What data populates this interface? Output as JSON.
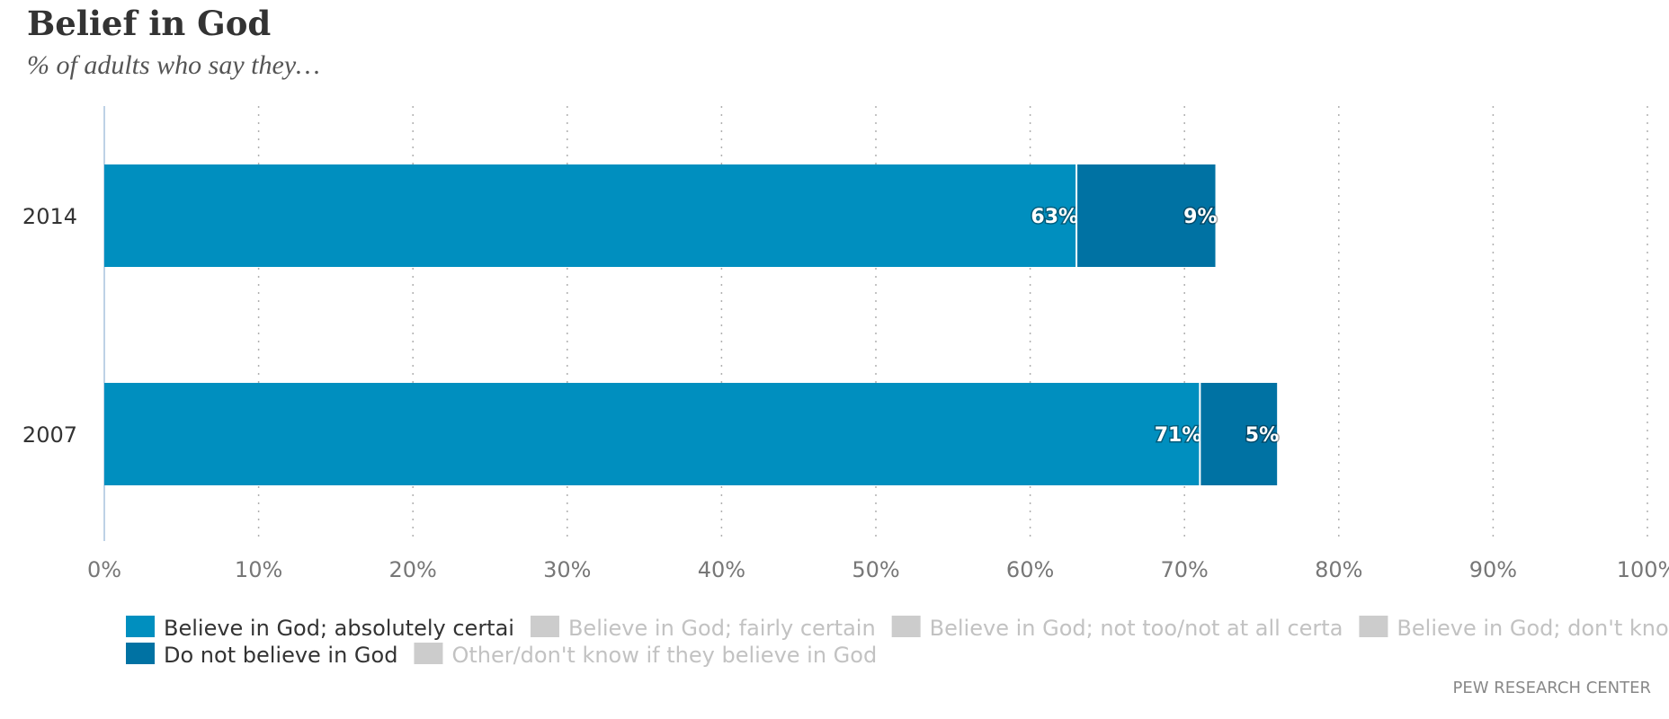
{
  "header": {
    "title": "Belief in God",
    "subtitle": "% of adults who say they…"
  },
  "source": "PEW RESEARCH CENTER",
  "colors": {
    "absolutely_certain": "#008fbf",
    "do_not_believe": "#0072a3",
    "inactive": "#cccccc",
    "grid": "#b0b0b0"
  },
  "chart_data": {
    "type": "bar",
    "orientation": "horizontal",
    "stacked": true,
    "categories": [
      "2014",
      "2007"
    ],
    "series": [
      {
        "name": "Believe in God; absolutely certain",
        "values": [
          63,
          71
        ],
        "labels": [
          "63%",
          "71%"
        ],
        "color": "#008fbf",
        "visible": true
      },
      {
        "name": "Do not believe in God",
        "values": [
          9,
          5
        ],
        "labels": [
          "9%",
          "5%"
        ],
        "color": "#0072a3",
        "visible": true
      }
    ],
    "xlim": [
      0,
      100
    ],
    "xticks": [
      "0%",
      "10%",
      "20%",
      "30%",
      "40%",
      "50%",
      "60%",
      "70%",
      "80%",
      "90%",
      "100%"
    ],
    "grid": "vertical dotted",
    "legend": {
      "placement": "bottom",
      "rows": [
        [
          {
            "label": "Believe in God; absolutely certai",
            "color": "#008fbf",
            "active": true
          },
          {
            "label": "Believe in God; fairly certain",
            "color": "#cccccc",
            "active": false
          },
          {
            "label": "Believe in God; not too/not at all certa",
            "color": "#cccccc",
            "active": false
          },
          {
            "label": "Believe in God; don't know",
            "color": "#cccccc",
            "active": false
          }
        ],
        [
          {
            "label": "Do not believe in God",
            "color": "#0072a3",
            "active": true
          },
          {
            "label": "Other/don't know if they believe in God",
            "color": "#cccccc",
            "active": false
          }
        ]
      ]
    }
  }
}
